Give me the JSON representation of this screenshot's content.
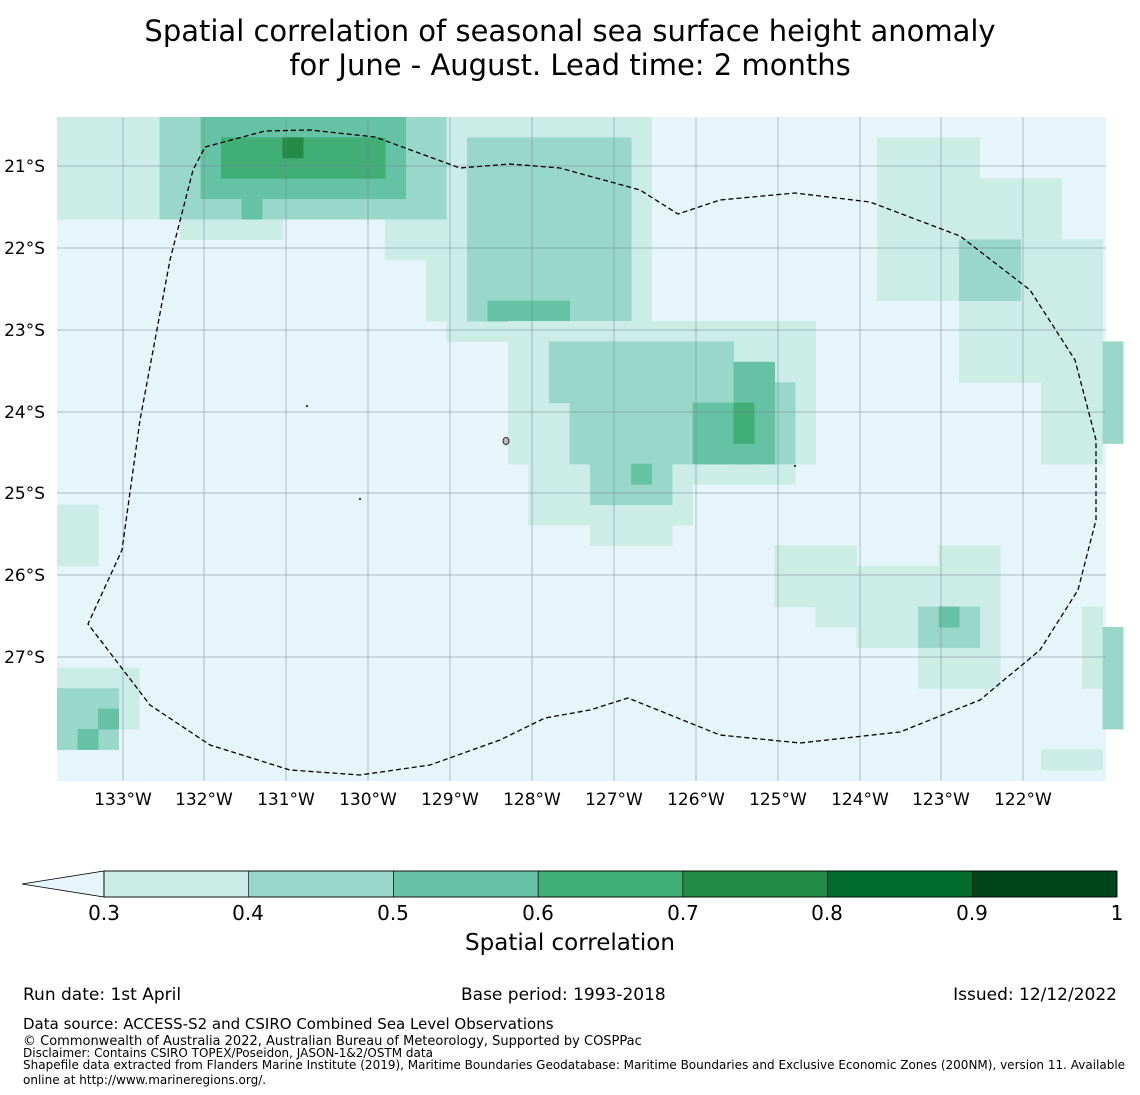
{
  "title": {
    "line1": "Spatial correlation of seasonal sea surface height anomaly",
    "line2": "for June - August. Lead time: 2 months"
  },
  "map": {
    "lat_labels": [
      "21°S",
      "22°S",
      "23°S",
      "24°S",
      "25°S",
      "26°S",
      "27°S"
    ],
    "lon_labels": [
      "133°W",
      "132°W",
      "131°W",
      "130°W",
      "129°W",
      "128°W",
      "127°W",
      "126°W",
      "125°W",
      "124°W",
      "123°W",
      "122°W"
    ],
    "background_color": "#e5f5f9",
    "grid_color": "#708090",
    "eez_boundary_style": "dashed black"
  },
  "colorbar": {
    "ticks": [
      "0.3",
      "0.4",
      "0.5",
      "0.6",
      "0.7",
      "0.8",
      "0.9",
      "1"
    ],
    "colors": [
      "#ccece6",
      "#99d8c9",
      "#66c2a4",
      "#41ae76",
      "#238b45",
      "#006d2c",
      "#00441b"
    ],
    "label": "Spatial correlation"
  },
  "footer": {
    "run_date": "Run date: 1st April",
    "base_period": "Base period: 1993-2018",
    "issued": "Issued: 12/12/2022",
    "data_source": "Data source: ACCESS-S2 and CSIRO Combined Sea Level Observations",
    "copyright": "© Commonwealth of Australia 2022, Australian Bureau of Meteorology, Supported by COSPPac",
    "disclaimer": "Disclaimer: Contains CSIRO TOPEX/Poseidon, JASON-1&2/OSTM data",
    "shapefile": "Shapefile data extracted from Flanders Marine Institute (2019), Maritime Boundaries Geodatabase: Maritime Boundaries and Exclusive Economic Zones (200NM), version 11. Available online at http://www.marineregions.org/."
  }
}
